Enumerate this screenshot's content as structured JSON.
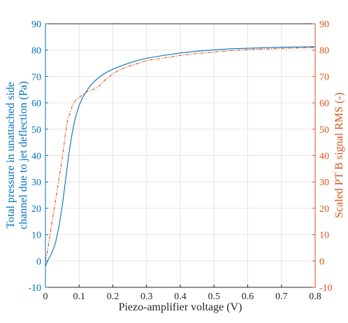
{
  "chart_data": {
    "type": "line",
    "xlabel": "Piezo-amplifier voltage (V)",
    "ylabel_left_line1": "Total pressure in unattached side",
    "ylabel_left_line2": "channel due to jet deflection (Pa)",
    "ylabel_right": "Scaled PT B signal RMS (-)",
    "xlim": [
      0,
      0.8
    ],
    "ylim": [
      -10,
      90
    ],
    "xticks": [
      "0",
      "0.1",
      "0.2",
      "0.3",
      "0.4",
      "0.5",
      "0.6",
      "0.7",
      "0.8"
    ],
    "yticks": [
      "-10",
      "0",
      "10",
      "20",
      "30",
      "40",
      "50",
      "60",
      "70",
      "80",
      "90"
    ],
    "grid": true,
    "colors": {
      "left_axis": "#0072BD",
      "right_axis": "#D95319"
    },
    "series": [
      {
        "axis": "left",
        "style": "solid",
        "color": "#0072BD",
        "x": [
          0,
          0.005,
          0.01,
          0.015,
          0.02,
          0.025,
          0.03,
          0.035,
          0.04,
          0.045,
          0.05,
          0.055,
          0.06,
          0.065,
          0.07,
          0.075,
          0.08,
          0.085,
          0.09,
          0.095,
          0.1,
          0.11,
          0.12,
          0.13,
          0.14,
          0.15,
          0.16,
          0.18,
          0.2,
          0.22,
          0.25,
          0.28,
          0.3,
          0.35,
          0.4,
          0.45,
          0.5,
          0.55,
          0.6,
          0.65,
          0.7,
          0.75,
          0.8
        ],
        "y": [
          -2,
          -0.5,
          1,
          2,
          3.5,
          5,
          7,
          10,
          13,
          17,
          21,
          26,
          31,
          36,
          41,
          45,
          49,
          52,
          55,
          57,
          59,
          62,
          64,
          66,
          67.5,
          68.7,
          69.8,
          71.5,
          72.8,
          73.8,
          75.2,
          76.3,
          76.9,
          78,
          78.9,
          79.6,
          80.1,
          80.5,
          80.7,
          80.9,
          81.1,
          81.2,
          81.3
        ]
      },
      {
        "axis": "right",
        "style": "dashdot",
        "color": "#D95319",
        "x": [
          0,
          0.005,
          0.01,
          0.015,
          0.02,
          0.025,
          0.03,
          0.035,
          0.04,
          0.045,
          0.05,
          0.055,
          0.06,
          0.065,
          0.07,
          0.075,
          0.08,
          0.085,
          0.09,
          0.1,
          0.11,
          0.12,
          0.13,
          0.14,
          0.15,
          0.16,
          0.18,
          0.2,
          0.22,
          0.25,
          0.28,
          0.3,
          0.35,
          0.4,
          0.45,
          0.5,
          0.55,
          0.6,
          0.65,
          0.7,
          0.75,
          0.8
        ],
        "y": [
          0,
          3,
          7,
          11,
          15,
          19,
          23,
          27,
          31,
          35,
          39,
          44,
          49,
          53,
          55,
          57,
          59,
          60,
          61,
          62,
          63,
          64,
          64.5,
          65,
          65.5,
          66.5,
          69,
          71,
          72.5,
          74,
          75.2,
          76,
          77,
          78,
          78.7,
          79.3,
          79.8,
          80.2,
          80.4,
          80.6,
          80.8,
          81
        ]
      }
    ]
  }
}
